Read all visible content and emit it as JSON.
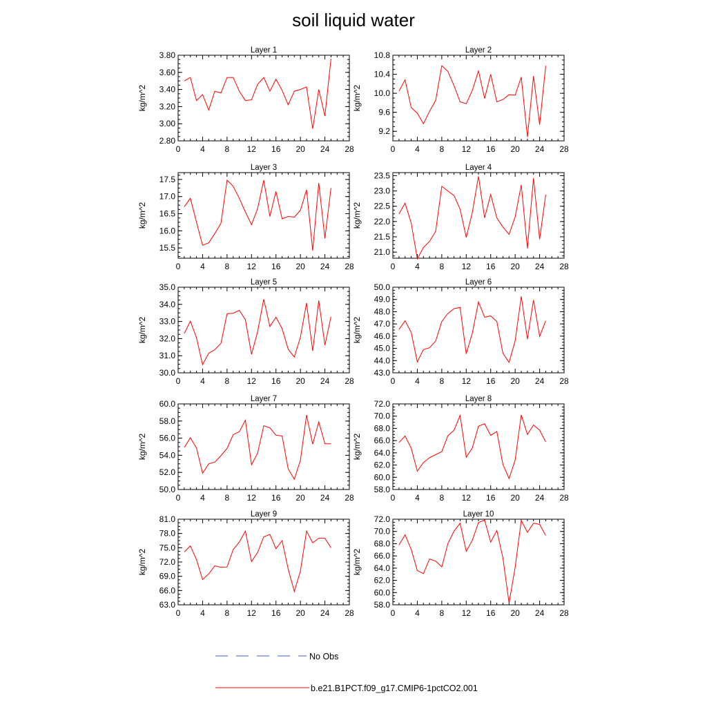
{
  "title": "soil liquid water",
  "legend": {
    "obs_label": "No Obs",
    "model_label": "b.e21.B1PCT.f09_g17.CMIP6-1pctCO2.001",
    "obs_color": "#3b5bd6",
    "model_color": "#ff0000"
  },
  "chart_data": [
    {
      "type": "line",
      "title": "Layer 1",
      "ylabel": "kg/m^2",
      "xlim": [
        0,
        28
      ],
      "ylim": [
        2.8,
        3.8
      ],
      "xticks": [
        "0",
        "4",
        "8",
        "12",
        "16",
        "20",
        "24",
        "28"
      ],
      "yticks": [
        "2.80",
        "3.00",
        "3.20",
        "3.40",
        "3.60",
        "3.80"
      ],
      "x": [
        1,
        2,
        3,
        4,
        5,
        6,
        7,
        8,
        9,
        10,
        11,
        12,
        13,
        14,
        15,
        16,
        17,
        18,
        19,
        20,
        21,
        22,
        23,
        24,
        25
      ],
      "series": [
        {
          "name": "b.e21.B1PCT.f09_g17.CMIP6-1pctCO2.001",
          "values": [
            3.5,
            3.54,
            3.27,
            3.34,
            3.16,
            3.38,
            3.36,
            3.54,
            3.54,
            3.38,
            3.27,
            3.28,
            3.46,
            3.54,
            3.38,
            3.52,
            3.39,
            3.22,
            3.38,
            3.4,
            3.43,
            2.94,
            3.4,
            3.09,
            3.76
          ]
        }
      ]
    },
    {
      "type": "line",
      "title": "Layer 2",
      "ylabel": "kg/m^2",
      "xlim": [
        0,
        28
      ],
      "ylim": [
        9.0,
        10.8
      ],
      "xticks": [
        "0",
        "4",
        "8",
        "12",
        "16",
        "20",
        "24",
        "28"
      ],
      "yticks": [
        "9.2",
        "9.6",
        "10.0",
        "10.4",
        "10.8"
      ],
      "x": [
        1,
        2,
        3,
        4,
        5,
        6,
        7,
        8,
        9,
        10,
        11,
        12,
        13,
        14,
        15,
        16,
        17,
        18,
        19,
        20,
        21,
        22,
        23,
        24,
        25
      ],
      "series": [
        {
          "name": "b.e21.B1PCT.f09_g17.CMIP6-1pctCO2.001",
          "values": [
            10.05,
            10.28,
            9.7,
            9.58,
            9.36,
            9.62,
            9.85,
            10.58,
            10.46,
            10.16,
            9.82,
            9.78,
            10.06,
            10.47,
            9.89,
            10.4,
            9.82,
            9.87,
            9.97,
            9.96,
            10.34,
            9.08,
            10.36,
            9.34,
            10.58
          ]
        }
      ]
    },
    {
      "type": "line",
      "title": "Layer 3",
      "ylabel": "kg/m^2",
      "xlim": [
        0,
        28
      ],
      "ylim": [
        15.2,
        17.7
      ],
      "xticks": [
        "0",
        "4",
        "8",
        "12",
        "16",
        "20",
        "24",
        "28"
      ],
      "yticks": [
        "15.5",
        "16.0",
        "16.5",
        "17.0",
        "17.5"
      ],
      "x": [
        1,
        2,
        3,
        4,
        5,
        6,
        7,
        8,
        9,
        10,
        11,
        12,
        13,
        14,
        15,
        16,
        17,
        18,
        19,
        20,
        21,
        22,
        23,
        24,
        25
      ],
      "series": [
        {
          "name": "b.e21.B1PCT.f09_g17.CMIP6-1pctCO2.001",
          "values": [
            16.7,
            16.95,
            16.25,
            15.58,
            15.65,
            15.92,
            16.22,
            17.48,
            17.3,
            16.95,
            16.55,
            16.18,
            16.65,
            17.48,
            16.42,
            17.15,
            16.35,
            16.42,
            16.4,
            16.6,
            17.2,
            15.42,
            17.4,
            15.78,
            17.25
          ]
        }
      ]
    },
    {
      "type": "line",
      "title": "Layer 4",
      "ylabel": "kg/m^2",
      "xlim": [
        0,
        28
      ],
      "ylim": [
        20.8,
        23.6
      ],
      "xticks": [
        "0",
        "4",
        "8",
        "12",
        "16",
        "20",
        "24",
        "28"
      ],
      "yticks": [
        "21.0",
        "21.5",
        "22.0",
        "22.5",
        "23.0",
        "23.5"
      ],
      "x": [
        1,
        2,
        3,
        4,
        5,
        6,
        7,
        8,
        9,
        10,
        11,
        12,
        13,
        14,
        15,
        16,
        17,
        18,
        19,
        20,
        21,
        22,
        23,
        24,
        25
      ],
      "series": [
        {
          "name": "b.e21.B1PCT.f09_g17.CMIP6-1pctCO2.001",
          "values": [
            22.25,
            22.6,
            21.95,
            20.78,
            21.15,
            21.35,
            21.68,
            23.15,
            23.0,
            22.85,
            22.4,
            21.48,
            22.3,
            23.48,
            22.12,
            22.88,
            22.12,
            21.82,
            21.58,
            22.15,
            23.2,
            21.12,
            23.42,
            21.42,
            22.88
          ]
        }
      ]
    },
    {
      "type": "line",
      "title": "Layer 5",
      "ylabel": "kg/m^2",
      "xlim": [
        0,
        28
      ],
      "ylim": [
        30.0,
        35.0
      ],
      "xticks": [
        "0",
        "4",
        "8",
        "12",
        "16",
        "20",
        "24",
        "28"
      ],
      "yticks": [
        "30.0",
        "31.0",
        "32.0",
        "33.0",
        "34.0",
        "35.0"
      ],
      "x": [
        1,
        2,
        3,
        4,
        5,
        6,
        7,
        8,
        9,
        10,
        11,
        12,
        13,
        14,
        15,
        16,
        17,
        18,
        19,
        20,
        21,
        22,
        23,
        24,
        25
      ],
      "series": [
        {
          "name": "b.e21.B1PCT.f09_g17.CMIP6-1pctCO2.001",
          "values": [
            32.3,
            33.02,
            32.05,
            30.48,
            31.15,
            31.35,
            31.72,
            33.45,
            33.48,
            33.65,
            33.1,
            31.08,
            32.4,
            34.3,
            32.7,
            33.25,
            32.58,
            31.38,
            30.92,
            32.08,
            34.08,
            31.28,
            34.22,
            31.62,
            33.28
          ]
        }
      ]
    },
    {
      "type": "line",
      "title": "Layer 6",
      "ylabel": "kg/m^2",
      "xlim": [
        0,
        28
      ],
      "ylim": [
        43.0,
        50.0
      ],
      "xticks": [
        "0",
        "4",
        "8",
        "12",
        "16",
        "20",
        "24",
        "28"
      ],
      "yticks": [
        "43.0",
        "44.0",
        "45.0",
        "46.0",
        "47.0",
        "48.0",
        "49.0",
        "50.0"
      ],
      "x": [
        1,
        2,
        3,
        4,
        5,
        6,
        7,
        8,
        9,
        10,
        11,
        12,
        13,
        14,
        15,
        16,
        17,
        18,
        19,
        20,
        21,
        22,
        23,
        24,
        25
      ],
      "series": [
        {
          "name": "b.e21.B1PCT.f09_g17.CMIP6-1pctCO2.001",
          "values": [
            46.55,
            47.25,
            46.3,
            43.9,
            44.9,
            45.05,
            45.6,
            47.2,
            47.85,
            48.25,
            48.35,
            44.55,
            46.25,
            48.8,
            47.55,
            47.65,
            47.2,
            44.6,
            43.85,
            45.6,
            49.25,
            45.75,
            48.95,
            45.98,
            47.25
          ]
        }
      ]
    },
    {
      "type": "line",
      "title": "Layer 7",
      "ylabel": "kg/m^2",
      "xlim": [
        0,
        28
      ],
      "ylim": [
        50.0,
        60.0
      ],
      "xticks": [
        "0",
        "4",
        "8",
        "12",
        "16",
        "20",
        "24",
        "28"
      ],
      "yticks": [
        "50.0",
        "52.0",
        "54.0",
        "56.0",
        "58.0",
        "60.0"
      ],
      "x": [
        1,
        2,
        3,
        4,
        5,
        6,
        7,
        8,
        9,
        10,
        11,
        12,
        13,
        14,
        15,
        16,
        17,
        18,
        19,
        20,
        21,
        22,
        23,
        24,
        25
      ],
      "series": [
        {
          "name": "b.e21.B1PCT.f09_g17.CMIP6-1pctCO2.001",
          "values": [
            54.9,
            56.05,
            54.85,
            51.9,
            53.0,
            53.2,
            53.95,
            54.8,
            56.4,
            56.75,
            58.1,
            52.9,
            54.25,
            57.45,
            57.2,
            56.35,
            56.25,
            52.4,
            51.2,
            53.4,
            58.7,
            55.3,
            57.9,
            55.35,
            55.35
          ]
        }
      ]
    },
    {
      "type": "line",
      "title": "Layer 8",
      "ylabel": "kg/m^2",
      "xlim": [
        0,
        28
      ],
      "ylim": [
        58.0,
        72.0
      ],
      "xticks": [
        "0",
        "4",
        "8",
        "12",
        "16",
        "20",
        "24",
        "28"
      ],
      "yticks": [
        "58.0",
        "60.0",
        "62.0",
        "64.0",
        "66.0",
        "68.0",
        "70.0",
        "72.0"
      ],
      "x": [
        1,
        2,
        3,
        4,
        5,
        6,
        7,
        8,
        9,
        10,
        11,
        12,
        13,
        14,
        15,
        16,
        17,
        18,
        19,
        20,
        21,
        22,
        23,
        24,
        25
      ],
      "series": [
        {
          "name": "b.e21.B1PCT.f09_g17.CMIP6-1pctCO2.001",
          "values": [
            65.7,
            66.75,
            64.75,
            61.0,
            62.4,
            63.2,
            63.7,
            64.2,
            66.8,
            67.7,
            70.1,
            63.3,
            64.8,
            68.35,
            68.75,
            66.85,
            67.5,
            62.1,
            59.8,
            62.8,
            70.2,
            67.0,
            68.55,
            67.7,
            65.8
          ]
        }
      ]
    },
    {
      "type": "line",
      "title": "Layer 9",
      "ylabel": "kg/m^2",
      "xlim": [
        0,
        28
      ],
      "ylim": [
        63.0,
        81.0
      ],
      "xticks": [
        "0",
        "4",
        "8",
        "12",
        "16",
        "20",
        "24",
        "28"
      ],
      "yticks": [
        "63.0",
        "66.0",
        "69.0",
        "72.0",
        "75.0",
        "78.0",
        "81.0"
      ],
      "x": [
        1,
        2,
        3,
        4,
        5,
        6,
        7,
        8,
        9,
        10,
        11,
        12,
        13,
        14,
        15,
        16,
        17,
        18,
        19,
        20,
        21,
        22,
        23,
        24,
        25
      ],
      "series": [
        {
          "name": "b.e21.B1PCT.f09_g17.CMIP6-1pctCO2.001",
          "values": [
            74.1,
            75.4,
            72.5,
            68.3,
            69.5,
            71.2,
            70.9,
            70.95,
            74.6,
            76.2,
            78.5,
            72.1,
            74.0,
            77.3,
            77.8,
            74.8,
            76.5,
            70.5,
            65.8,
            70.1,
            78.5,
            76.05,
            77.0,
            77.0,
            75.0
          ]
        }
      ]
    },
    {
      "type": "line",
      "title": "Layer 10",
      "ylabel": "kg/m^2",
      "xlim": [
        0,
        28
      ],
      "ylim": [
        58.0,
        72.0
      ],
      "xticks": [
        "0",
        "4",
        "8",
        "12",
        "16",
        "20",
        "24",
        "28"
      ],
      "yticks": [
        "58.0",
        "60.0",
        "62.0",
        "64.0",
        "66.0",
        "68.0",
        "70.0",
        "72.0"
      ],
      "x": [
        1,
        2,
        3,
        4,
        5,
        6,
        7,
        8,
        9,
        10,
        11,
        12,
        13,
        14,
        15,
        16,
        17,
        18,
        19,
        20,
        21,
        22,
        23,
        24,
        25
      ],
      "series": [
        {
          "name": "b.e21.B1PCT.f09_g17.CMIP6-1pctCO2.001",
          "values": [
            67.8,
            69.45,
            67.05,
            63.6,
            63.1,
            65.5,
            65.15,
            64.2,
            68.0,
            70.05,
            71.35,
            66.75,
            68.55,
            71.45,
            71.85,
            68.25,
            70.15,
            65.65,
            58.3,
            64.1,
            71.8,
            69.85,
            71.35,
            71.15,
            69.35
          ]
        }
      ]
    }
  ]
}
